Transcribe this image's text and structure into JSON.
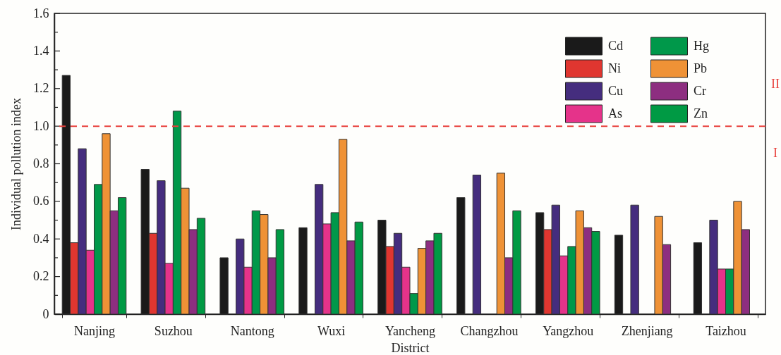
{
  "chart_data": {
    "type": "bar",
    "xlabel": "District",
    "ylabel": "Individual pollution index",
    "categories": [
      "Nanjing",
      "Suzhou",
      "Nantong",
      "Wuxi",
      "Yancheng",
      "Changzhou",
      "Yangzhou",
      "Zhenjiang",
      "Taizhou"
    ],
    "series": [
      {
        "name": "Cd",
        "color": "#1a1a1a",
        "values": [
          1.27,
          0.77,
          0.3,
          0.46,
          0.5,
          0.62,
          0.54,
          0.42,
          0.38
        ]
      },
      {
        "name": "Ni",
        "color": "#e03630",
        "values": [
          0.38,
          0.43,
          null,
          null,
          0.36,
          null,
          0.45,
          null,
          null
        ]
      },
      {
        "name": "Cu",
        "color": "#452d7e",
        "values": [
          0.88,
          0.71,
          0.4,
          0.69,
          0.43,
          0.74,
          0.58,
          0.58,
          0.5
        ]
      },
      {
        "name": "As",
        "color": "#e5338a",
        "values": [
          0.34,
          0.27,
          0.25,
          0.48,
          0.25,
          null,
          0.31,
          null,
          0.24
        ]
      },
      {
        "name": "Hg",
        "color": "#00984a",
        "values": [
          0.69,
          1.08,
          0.55,
          0.54,
          0.11,
          null,
          0.36,
          null,
          0.24
        ]
      },
      {
        "name": "Pb",
        "color": "#ef9236",
        "values": [
          0.96,
          0.67,
          0.53,
          0.93,
          0.35,
          0.75,
          0.55,
          0.52,
          0.6
        ]
      },
      {
        "name": "Cr",
        "color": "#8d2e80",
        "values": [
          0.55,
          0.45,
          0.3,
          0.39,
          0.39,
          0.3,
          0.46,
          0.37,
          0.45
        ]
      },
      {
        "name": "Zn",
        "color": "#009a44",
        "values": [
          0.62,
          0.51,
          0.45,
          0.49,
          0.43,
          0.55,
          0.44,
          null,
          null
        ]
      }
    ],
    "ylim": [
      0,
      1.6
    ],
    "yticks": [
      0,
      {
        "value": 0.1,
        "label": null
      },
      0.2,
      {
        "value": 0.3,
        "label": null
      },
      0.4,
      {
        "value": 0.5,
        "label": null
      },
      0.6,
      {
        "value": 0.7,
        "label": null
      },
      0.8,
      {
        "value": 0.9,
        "label": null
      },
      {
        "value": 1,
        "label": "1.0"
      },
      {
        "value": 1.1,
        "label": null
      },
      1.2,
      {
        "value": 1.3,
        "label": null
      },
      1.4,
      {
        "value": 1.5,
        "label": null
      },
      1.6
    ],
    "ref_lines": [
      {
        "axis": "y",
        "value": 1,
        "color": "#e8413c",
        "line_style": "dashed"
      }
    ],
    "annotations": [
      "II",
      "I"
    ],
    "legend": "top right",
    "grid": false
  }
}
